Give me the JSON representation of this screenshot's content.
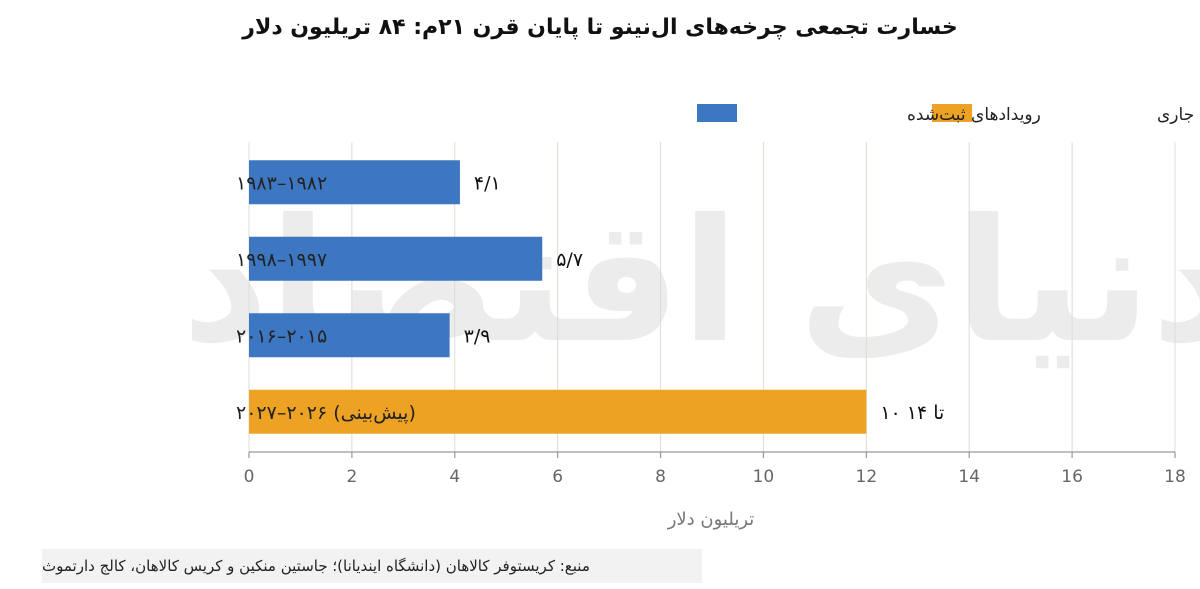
{
  "chart_data": {
    "type": "bar",
    "orientation": "horizontal",
    "title": "خسارت تجمعی چرخه‌های ال‌نینو تا پایان قرن ۲۱م: ۸۴ تریلیون دلار",
    "xlabel": "تریلیون دلار",
    "ylabel": "",
    "xlim": [
      0,
      18
    ],
    "xticks": [
      0,
      2,
      4,
      6,
      8,
      10,
      12,
      14,
      16,
      18
    ],
    "grid": true,
    "legend_position": "top-right",
    "legend": [
      {
        "name": "پیش‌بینی رویداد جاری",
        "color": "#eda223"
      },
      {
        "name": "رویدادهای ثبت‌شده",
        "color": "#3d77c1"
      }
    ],
    "categories": [
      "۱۹۸۲–۱۹۸۳",
      "۱۹۹۷–۱۹۹۸",
      "۲۰۱۵–۲۰۱۶",
      "(پیش‌بینی) ۲۰۲۶–۲۰۲۷"
    ],
    "values": [
      4.1,
      5.7,
      3.9,
      12
    ],
    "value_labels": [
      "۴/۱",
      "۵/۷",
      "۳/۹",
      "۱۰ تا ۱۴"
    ],
    "bar_series": [
      "رویدادهای ثبت‌شده",
      "رویدادهای ثبت‌شده",
      "رویدادهای ثبت‌شده",
      "پیش‌بینی رویداد جاری"
    ]
  },
  "watermark": "دنیای اقتصاد",
  "source": "منبع: کریستوفر کالاهان (دانشگاه ایندیانا)؛ جاستین منکین و کریس کالاهان، کالج دارتموث"
}
